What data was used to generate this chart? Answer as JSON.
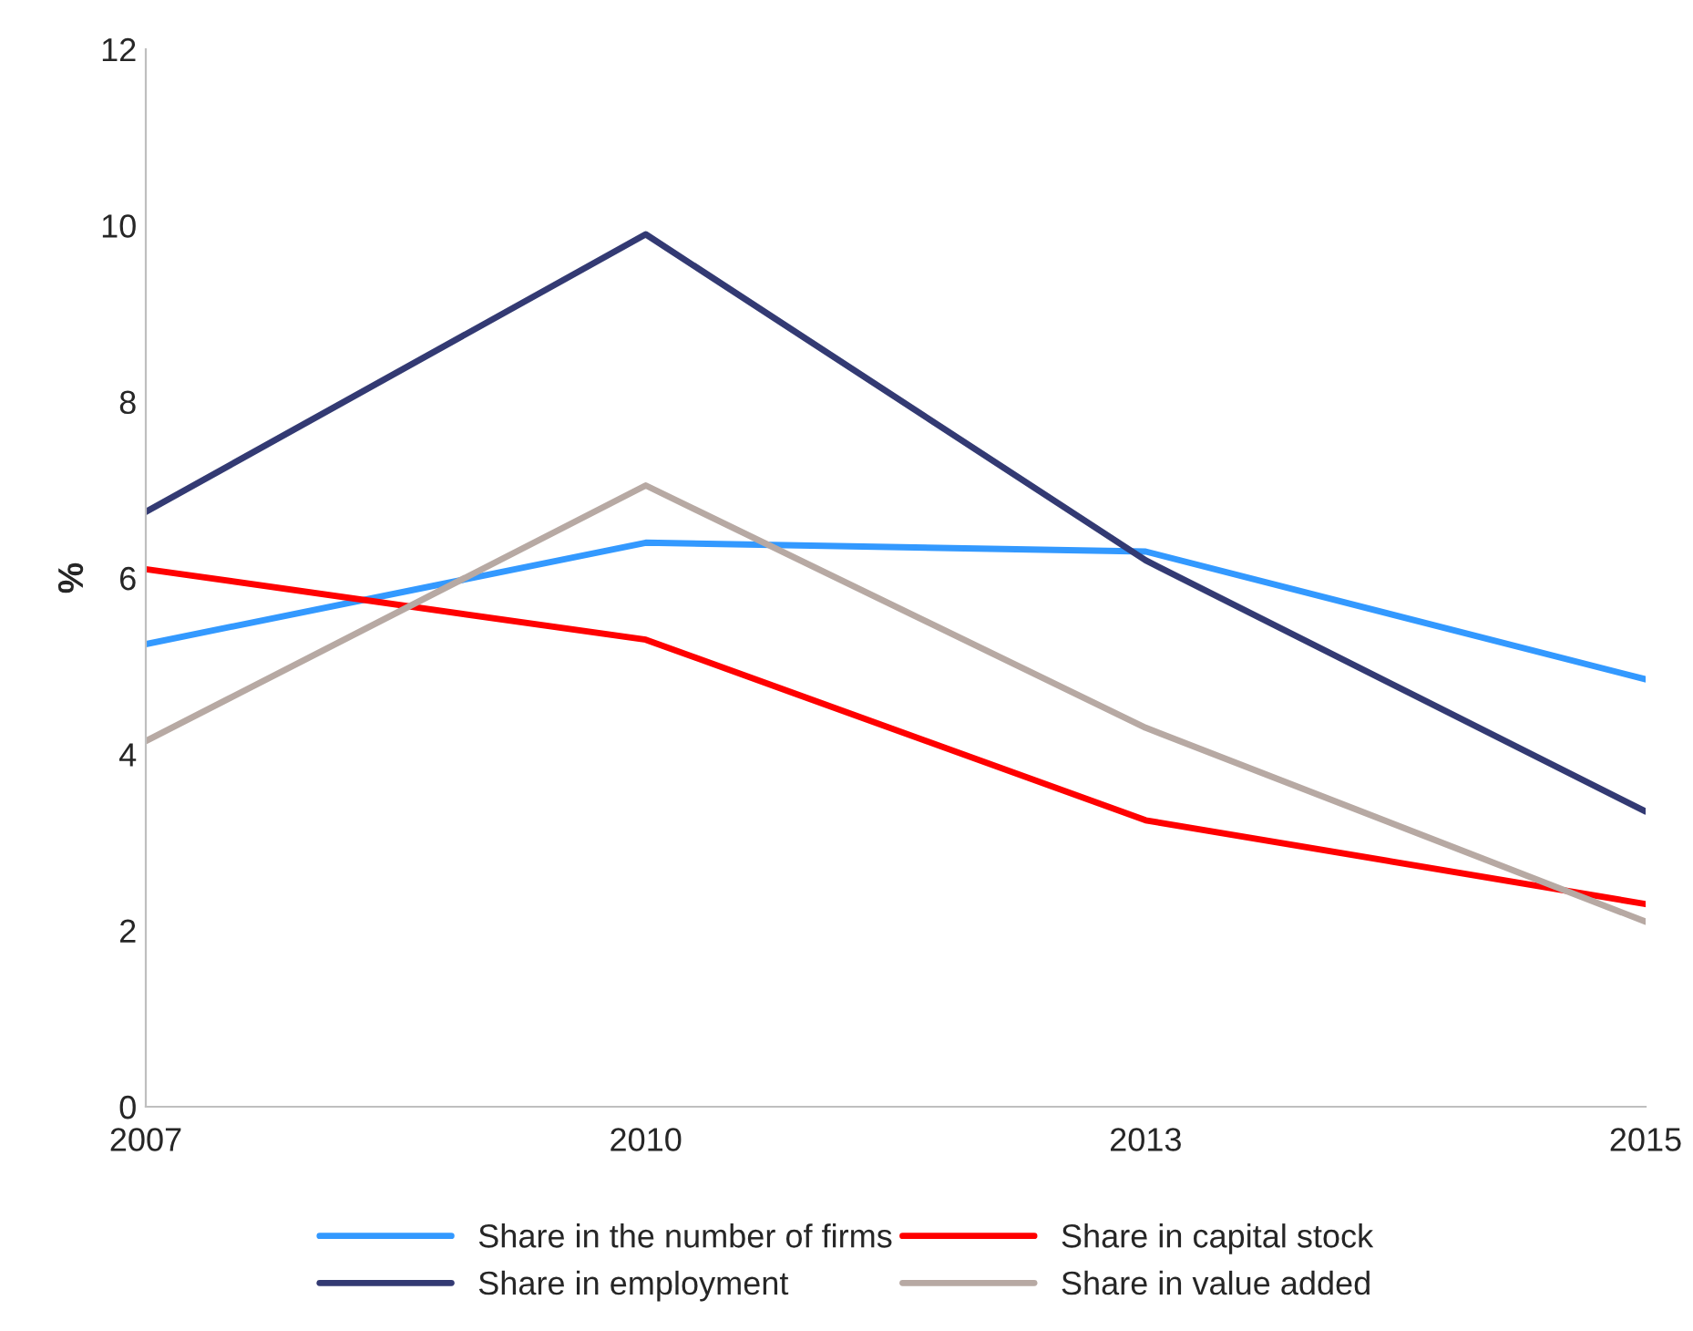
{
  "chart_data": {
    "type": "line",
    "ylabel": "%",
    "categories": [
      "2007",
      "2010",
      "2013",
      "2015"
    ],
    "series": [
      {
        "name": "Share in the number of firms",
        "color": "#3399ff",
        "values": [
          5.25,
          6.4,
          6.3,
          4.85
        ]
      },
      {
        "name": "Share in employment",
        "color": "#333a73",
        "values": [
          6.75,
          9.9,
          6.2,
          3.35
        ]
      },
      {
        "name": "Share in capital stock",
        "color": "#ff0000",
        "values": [
          6.1,
          5.3,
          3.25,
          2.3
        ]
      },
      {
        "name": "Share in value added",
        "color": "#b7a9a3",
        "values": [
          4.15,
          7.05,
          4.3,
          2.1
        ]
      }
    ],
    "ylim": [
      0,
      12
    ],
    "yticks": [
      0,
      2,
      4,
      6,
      8,
      10,
      12
    ],
    "grid": false,
    "legend": "bottom",
    "marker": "none",
    "line_style": "solid"
  }
}
